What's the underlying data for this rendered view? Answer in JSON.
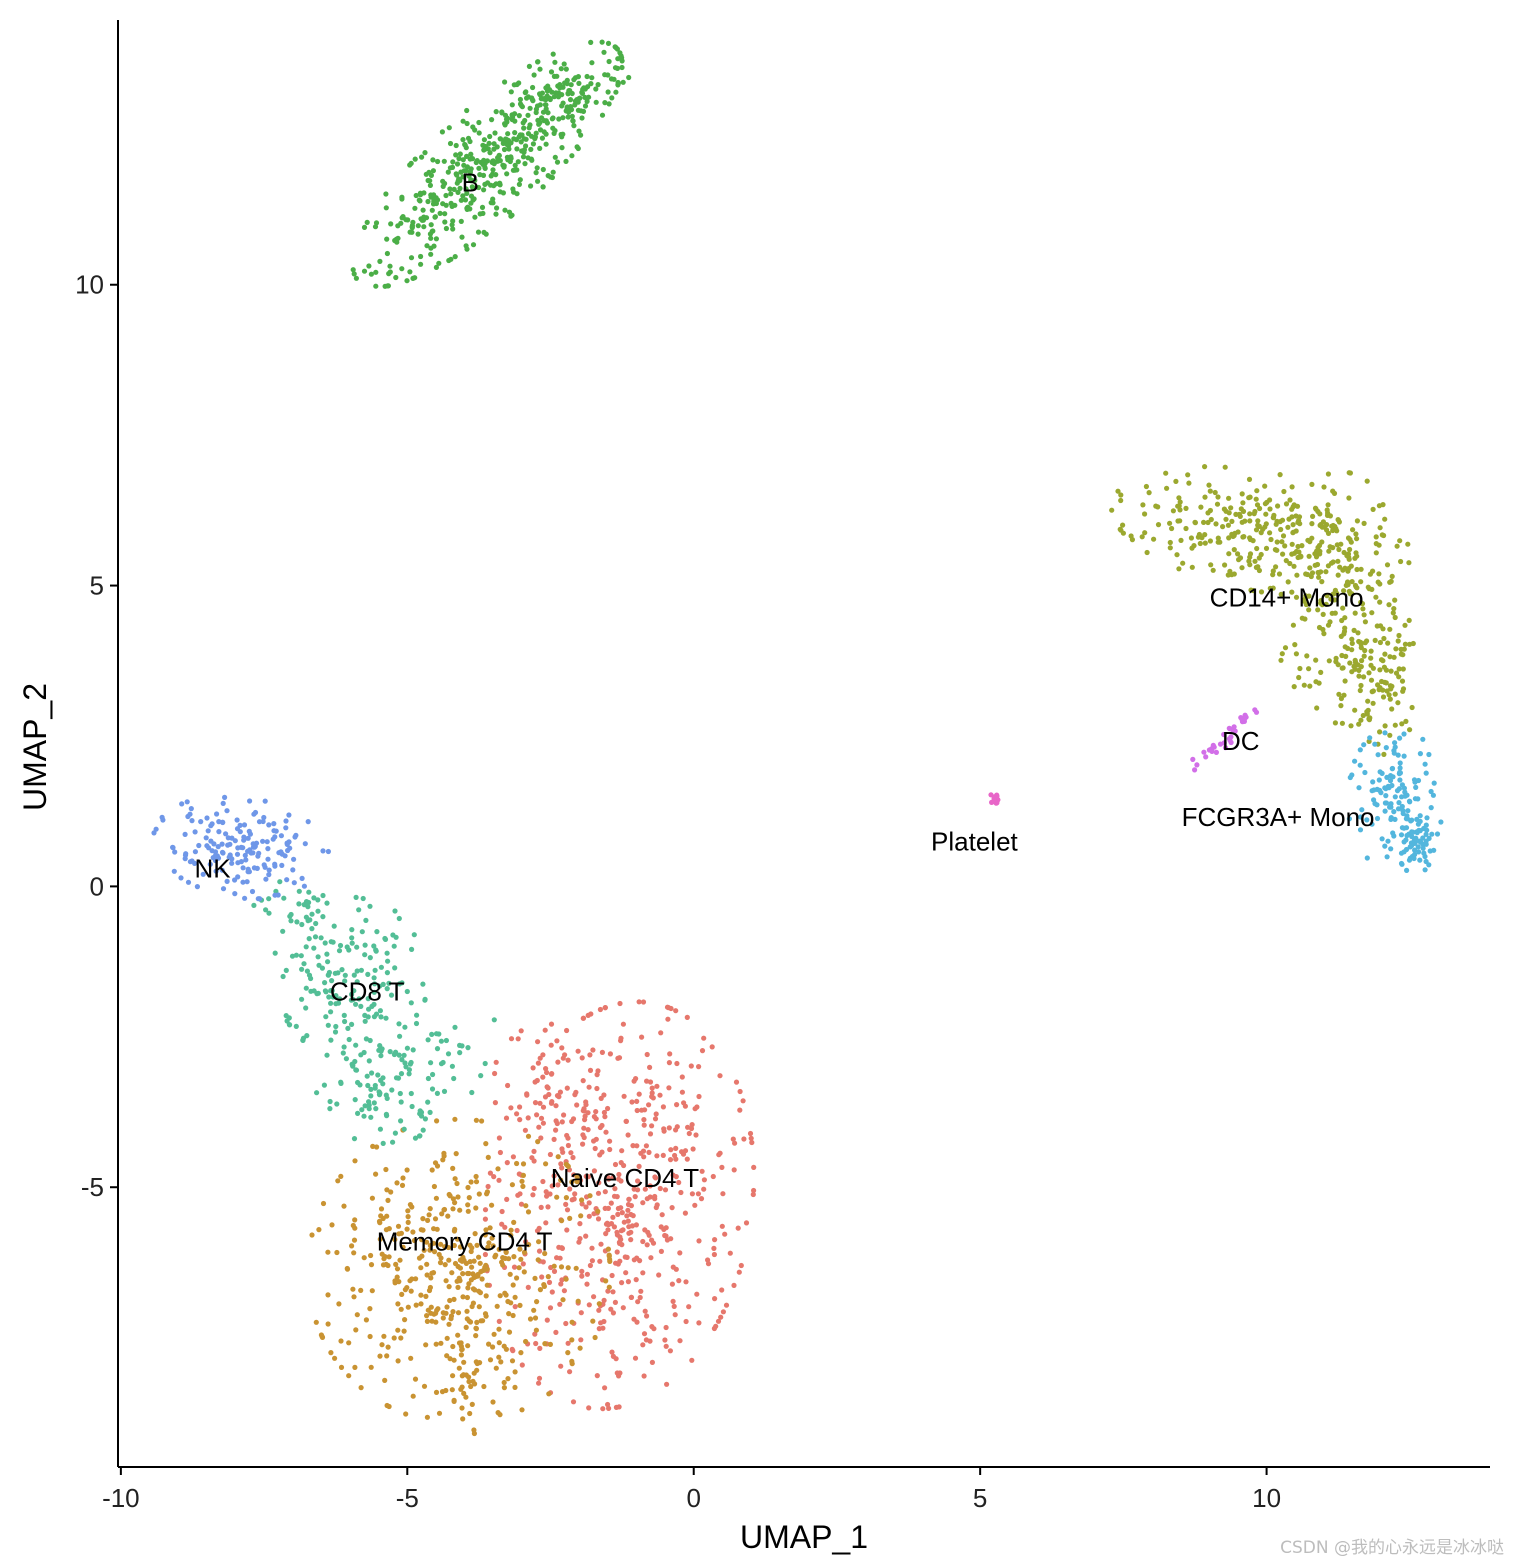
{
  "chart_data": {
    "type": "scatter",
    "title": "",
    "xlabel": "UMAP_1",
    "ylabel": "UMAP_2",
    "xlim": [
      -10.05,
      13.9
    ],
    "ylim": [
      -9.65,
      14.4
    ],
    "x_ticks": [
      -10,
      -5,
      0,
      5,
      10
    ],
    "x_tick_labels": [
      "-10",
      "-5",
      "0",
      "5",
      "10"
    ],
    "y_ticks": [
      -5,
      0,
      5,
      10
    ],
    "y_tick_labels": [
      "-5",
      "0",
      "5",
      "10"
    ],
    "grid": false,
    "legend": "none",
    "clusters": [
      {
        "name": "Naive CD4 T",
        "color": "#E6776C",
        "label_at": [
          -1.2,
          -4.85
        ],
        "blobs": [
          {
            "cx": -1.3,
            "cy": -5.3,
            "sx": 1.05,
            "sy": 1.55,
            "rot": -10,
            "n": 520
          },
          {
            "cx": -2.6,
            "cy": -3.6,
            "sx": 0.45,
            "sy": 0.6,
            "rot": 0,
            "n": 60
          }
        ]
      },
      {
        "name": "Memory CD4 T",
        "color": "#C99332",
        "label_at": [
          -4.0,
          -5.9
        ],
        "blobs": [
          {
            "cx": -4.1,
            "cy": -6.4,
            "sx": 1.2,
            "sy": 1.15,
            "rot": 0,
            "n": 460
          },
          {
            "cx": -4.1,
            "cy": -8.4,
            "sx": 0.2,
            "sy": 0.4,
            "rot": 0,
            "n": 20
          }
        ]
      },
      {
        "name": "CD8 T",
        "color": "#53BE96",
        "label_at": [
          -5.7,
          -1.75
        ],
        "blobs": [
          {
            "cx": -6.0,
            "cy": -1.5,
            "sx": 0.6,
            "sy": 0.65,
            "rot": 25,
            "n": 160
          },
          {
            "cx": -5.4,
            "cy": -3.2,
            "sx": 0.55,
            "sy": 0.5,
            "rot": 0,
            "n": 110
          },
          {
            "cx": -7.0,
            "cy": -0.4,
            "sx": 0.35,
            "sy": 0.3,
            "rot": 0,
            "n": 30
          },
          {
            "cx": -4.1,
            "cy": -2.6,
            "sx": 0.3,
            "sy": 0.5,
            "rot": 0,
            "n": 15
          }
        ]
      },
      {
        "name": "NK",
        "color": "#6F97E8",
        "label_at": [
          -8.4,
          0.3
        ],
        "blobs": [
          {
            "cx": -7.9,
            "cy": 0.65,
            "sx": 0.7,
            "sy": 0.38,
            "rot": -8,
            "n": 170
          }
        ]
      },
      {
        "name": "B",
        "color": "#4BAE47",
        "label_at": [
          -3.9,
          11.7
        ],
        "blobs": [
          {
            "cx": -3.6,
            "cy": 12.0,
            "sx": 1.35,
            "sy": 0.42,
            "rot": 40,
            "n": 480
          },
          {
            "cx": -2.2,
            "cy": 13.2,
            "sx": 0.5,
            "sy": 0.2,
            "rot": 10,
            "n": 60
          }
        ]
      },
      {
        "name": "CD14+ Mono",
        "color": "#9BA82F",
        "label_at": [
          10.35,
          4.8
        ],
        "blobs": [
          {
            "cx": 9.9,
            "cy": 5.9,
            "sx": 1.2,
            "sy": 0.45,
            "rot": -10,
            "n": 280
          },
          {
            "cx": 11.3,
            "cy": 4.8,
            "sx": 0.55,
            "sy": 0.95,
            "rot": 0,
            "n": 200
          },
          {
            "cx": 12.0,
            "cy": 3.4,
            "sx": 0.3,
            "sy": 0.55,
            "rot": 0,
            "n": 80
          }
        ]
      },
      {
        "name": "FCGR3A+ Mono",
        "color": "#53B6DD",
        "label_at": [
          10.2,
          1.15
        ],
        "blobs": [
          {
            "cx": 12.25,
            "cy": 1.45,
            "sx": 0.38,
            "sy": 0.55,
            "rot": 0,
            "n": 120
          },
          {
            "cx": 12.6,
            "cy": 0.75,
            "sx": 0.15,
            "sy": 0.25,
            "rot": 0,
            "n": 60
          }
        ]
      },
      {
        "name": "DC",
        "color": "#D26FE8",
        "label_at": [
          9.55,
          2.42
        ],
        "blobs": [
          {
            "cx": 9.25,
            "cy": 2.45,
            "sx": 0.38,
            "sy": 0.06,
            "rot": 40,
            "n": 34
          }
        ]
      },
      {
        "name": "Platelet",
        "color": "#E866C8",
        "label_at": [
          4.9,
          0.75
        ],
        "blobs": [
          {
            "cx": 5.25,
            "cy": 1.45,
            "sx": 0.05,
            "sy": 0.04,
            "rot": 0,
            "n": 14
          }
        ]
      }
    ]
  },
  "watermark": "CSDN @我的心永远是冰冰哒"
}
